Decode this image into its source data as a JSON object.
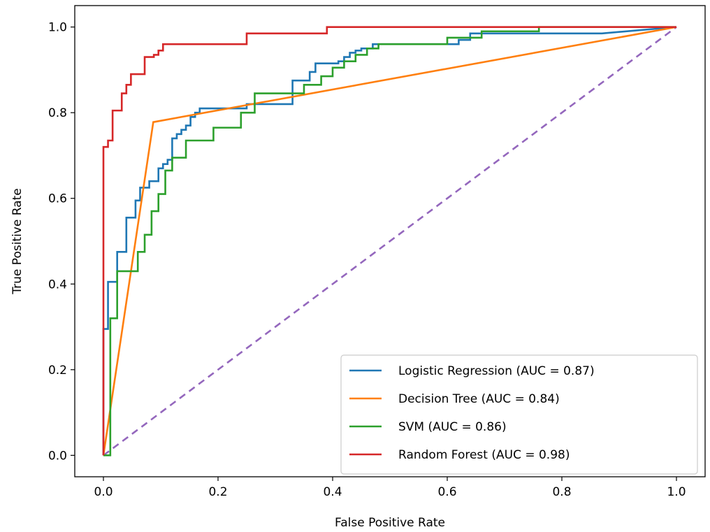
{
  "chart_data": {
    "type": "line",
    "title": "",
    "xlabel": "False Positive Rate",
    "ylabel": "True Positive Rate",
    "xlim": [
      -0.05,
      1.05
    ],
    "ylim": [
      -0.05,
      1.05
    ],
    "xticks": [
      0.0,
      0.2,
      0.4,
      0.6,
      0.8,
      1.0
    ],
    "xtick_labels": [
      "0.0",
      "0.2",
      "0.4",
      "0.6",
      "0.8",
      "1.0"
    ],
    "yticks": [
      0.0,
      0.2,
      0.4,
      0.6,
      0.8,
      1.0
    ],
    "ytick_labels": [
      "0.0",
      "0.2",
      "0.4",
      "0.6",
      "0.8",
      "1.0"
    ],
    "grid": false,
    "legend_position": "lower-right",
    "series": [
      {
        "name": "Logistic Regression (AUC = 0.87)",
        "color": "#1f77b4",
        "style": "solid",
        "x": [
          0.0,
          0.0,
          0.008,
          0.008,
          0.016,
          0.016,
          0.024,
          0.024,
          0.032,
          0.032,
          0.04,
          0.04,
          0.048,
          0.048,
          0.056,
          0.056,
          0.064,
          0.064,
          0.072,
          0.072,
          0.08,
          0.08,
          0.088,
          0.088,
          0.096,
          0.096,
          0.104,
          0.104,
          0.112,
          0.112,
          0.12,
          0.12,
          0.128,
          0.128,
          0.136,
          0.136,
          0.144,
          0.144,
          0.152,
          0.152,
          0.16,
          0.16,
          0.168,
          0.168,
          0.176,
          0.176,
          0.25,
          0.25,
          0.27,
          0.27,
          0.33,
          0.33,
          0.36,
          0.36,
          0.37,
          0.37,
          0.41,
          0.41,
          0.42,
          0.42,
          0.43,
          0.43,
          0.44,
          0.44,
          0.45,
          0.45,
          0.47,
          0.47,
          0.49,
          0.49,
          0.62,
          0.62,
          0.64,
          0.64,
          0.87,
          0.87,
          1.0
        ],
        "y": [
          0.0,
          0.295,
          0.295,
          0.405,
          0.405,
          0.405,
          0.405,
          0.475,
          0.475,
          0.475,
          0.475,
          0.555,
          0.555,
          0.555,
          0.555,
          0.595,
          0.595,
          0.625,
          0.625,
          0.625,
          0.625,
          0.64,
          0.64,
          0.64,
          0.64,
          0.67,
          0.67,
          0.68,
          0.68,
          0.69,
          0.69,
          0.74,
          0.74,
          0.75,
          0.75,
          0.76,
          0.76,
          0.77,
          0.77,
          0.79,
          0.79,
          0.8,
          0.8,
          0.81,
          0.81,
          0.81,
          0.81,
          0.82,
          0.82,
          0.82,
          0.82,
          0.875,
          0.875,
          0.895,
          0.895,
          0.915,
          0.915,
          0.92,
          0.92,
          0.93,
          0.93,
          0.94,
          0.94,
          0.945,
          0.945,
          0.95,
          0.95,
          0.96,
          0.96,
          0.96,
          0.96,
          0.97,
          0.97,
          0.985,
          0.985,
          0.985,
          1.0
        ]
      },
      {
        "name": "Decision Tree (AUC = 0.84)",
        "color": "#ff7f0e",
        "style": "solid",
        "x": [
          0.0,
          0.087,
          1.0
        ],
        "y": [
          0.0,
          0.778,
          1.0
        ]
      },
      {
        "name": "SVM (AUC = 0.86)",
        "color": "#2ca02c",
        "style": "solid",
        "x": [
          0.0,
          0.0,
          0.012,
          0.012,
          0.024,
          0.024,
          0.036,
          0.036,
          0.06,
          0.06,
          0.072,
          0.072,
          0.084,
          0.084,
          0.096,
          0.096,
          0.108,
          0.108,
          0.12,
          0.12,
          0.132,
          0.132,
          0.144,
          0.144,
          0.168,
          0.168,
          0.192,
          0.192,
          0.216,
          0.216,
          0.24,
          0.24,
          0.264,
          0.264,
          0.288,
          0.288,
          0.35,
          0.35,
          0.38,
          0.38,
          0.4,
          0.4,
          0.42,
          0.42,
          0.44,
          0.44,
          0.46,
          0.46,
          0.48,
          0.48,
          0.5,
          0.5,
          0.6,
          0.6,
          0.66,
          0.66,
          0.76,
          0.76,
          1.0
        ],
        "y": [
          0.0,
          0.0,
          0.0,
          0.32,
          0.32,
          0.43,
          0.43,
          0.43,
          0.43,
          0.475,
          0.475,
          0.515,
          0.515,
          0.57,
          0.57,
          0.61,
          0.61,
          0.665,
          0.665,
          0.695,
          0.695,
          0.695,
          0.695,
          0.735,
          0.735,
          0.735,
          0.735,
          0.765,
          0.765,
          0.765,
          0.765,
          0.8,
          0.8,
          0.845,
          0.845,
          0.845,
          0.845,
          0.865,
          0.865,
          0.885,
          0.885,
          0.905,
          0.905,
          0.92,
          0.92,
          0.935,
          0.935,
          0.95,
          0.95,
          0.96,
          0.96,
          0.96,
          0.96,
          0.975,
          0.975,
          0.99,
          0.99,
          1.0,
          1.0
        ]
      },
      {
        "name": "Random Forest (AUC = 0.98)",
        "color": "#d62728",
        "style": "solid",
        "x": [
          0.0,
          0.0,
          0.008,
          0.008,
          0.016,
          0.016,
          0.024,
          0.024,
          0.032,
          0.032,
          0.04,
          0.04,
          0.048,
          0.048,
          0.056,
          0.056,
          0.072,
          0.072,
          0.088,
          0.088,
          0.096,
          0.096,
          0.104,
          0.104,
          0.24,
          0.24,
          0.25,
          0.25,
          0.35,
          0.35,
          0.39,
          0.39,
          1.0
        ],
        "y": [
          0.0,
          0.72,
          0.72,
          0.735,
          0.735,
          0.805,
          0.805,
          0.805,
          0.805,
          0.845,
          0.845,
          0.865,
          0.865,
          0.89,
          0.89,
          0.89,
          0.89,
          0.93,
          0.93,
          0.935,
          0.935,
          0.945,
          0.945,
          0.96,
          0.96,
          0.96,
          0.96,
          0.985,
          0.985,
          0.985,
          0.985,
          1.0,
          1.0
        ]
      },
      {
        "name": "",
        "color": "#9467bd",
        "style": "dashed",
        "x": [
          0.0,
          1.0
        ],
        "y": [
          0.0,
          1.0
        ]
      }
    ]
  }
}
